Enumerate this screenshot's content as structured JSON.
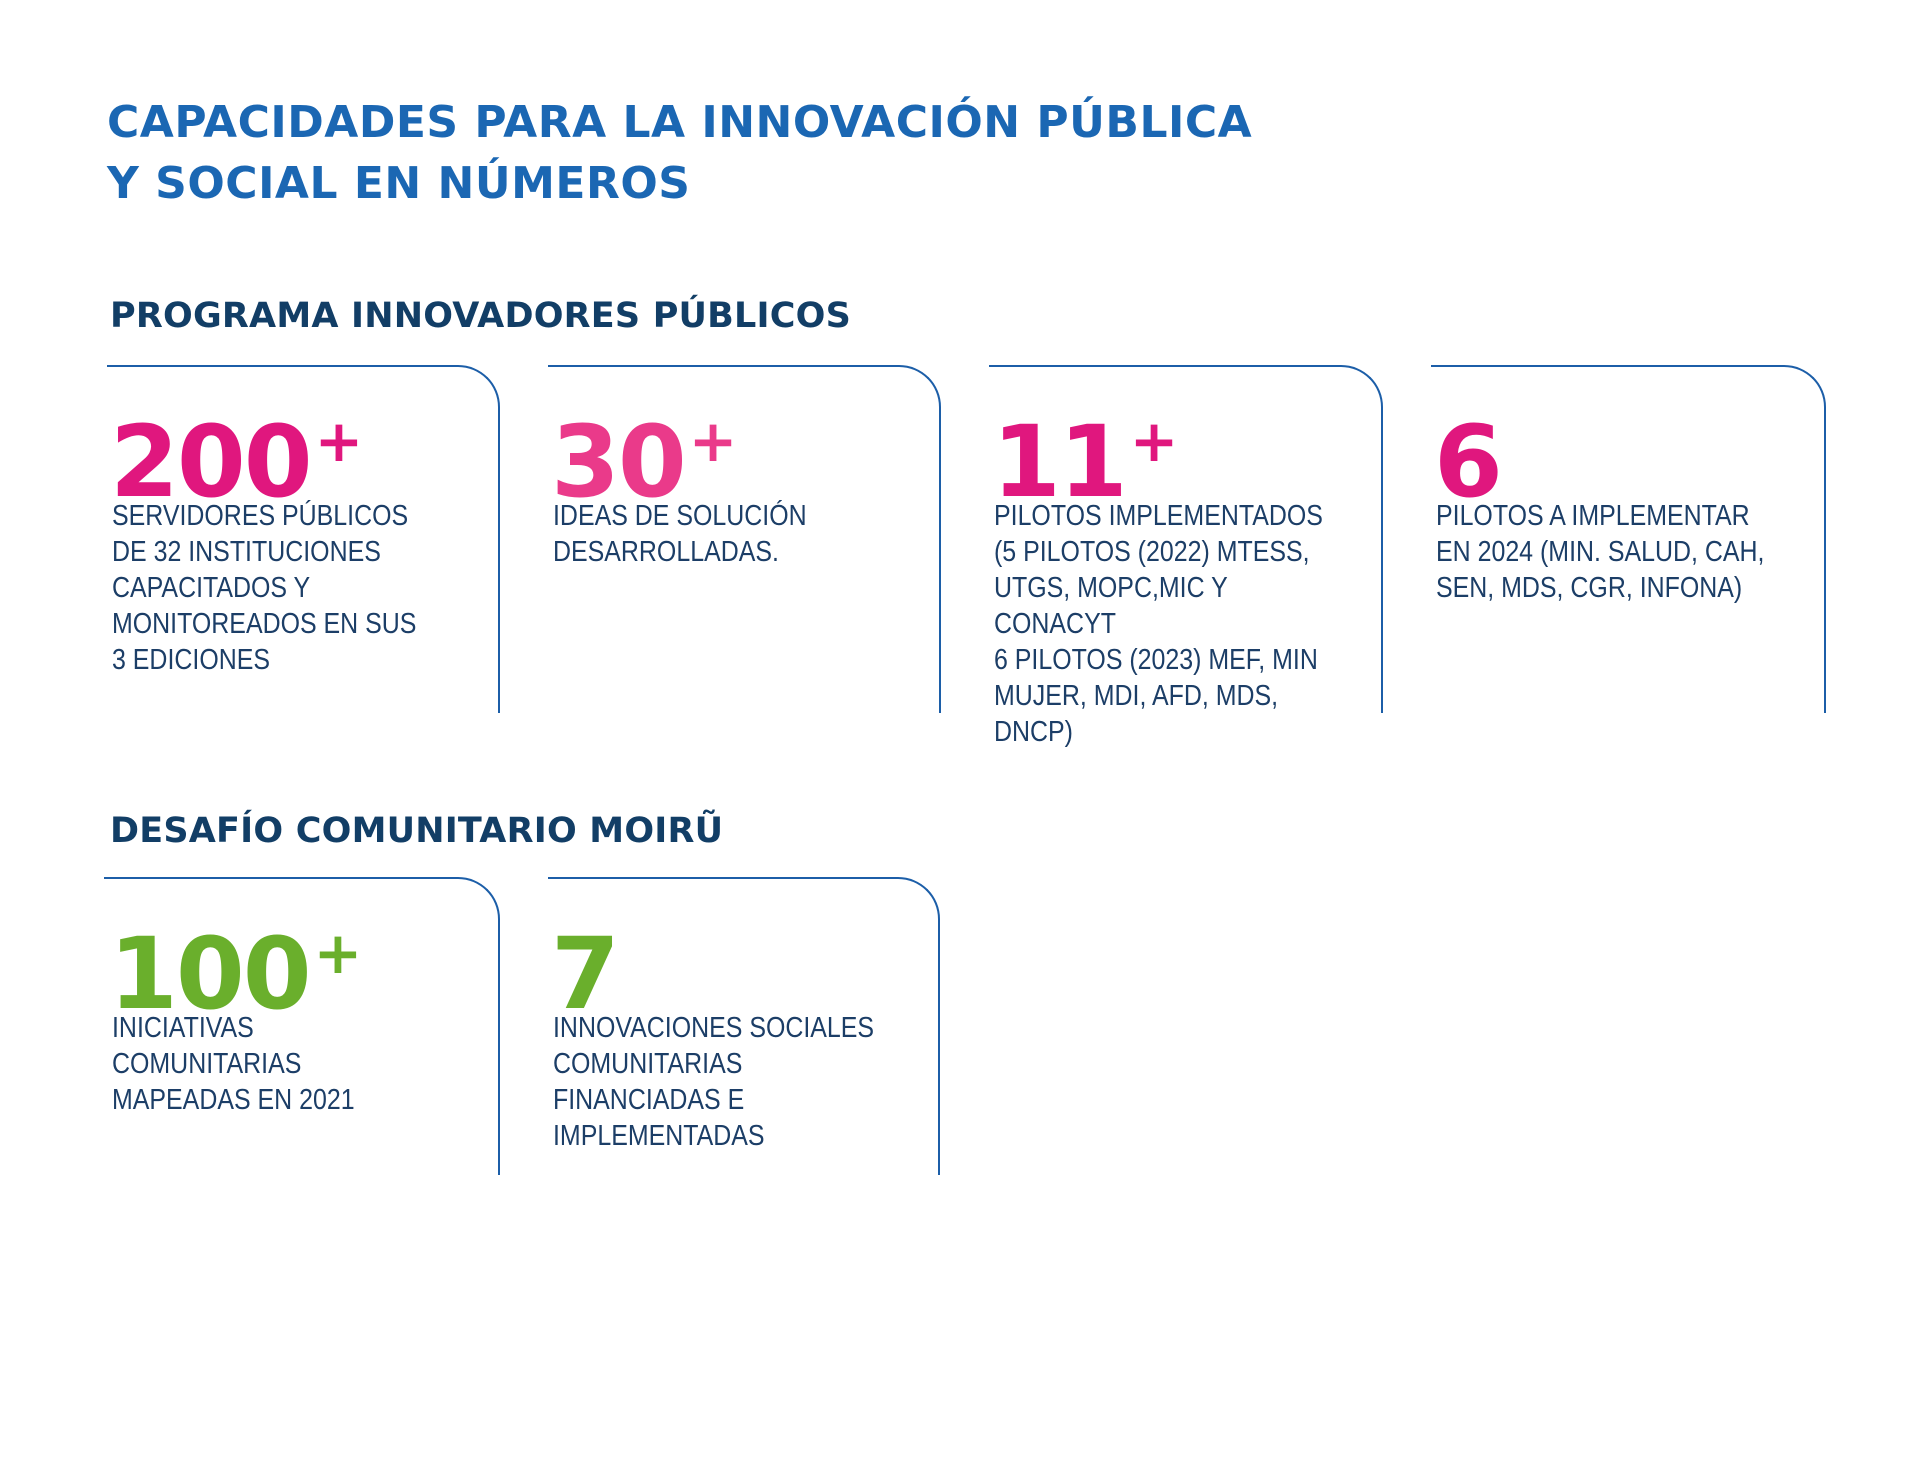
{
  "title": {
    "line1": "CAPACIDADES PARA LA INNOVACIÓN PÚBLICA",
    "line2": "Y SOCIAL EN NÚMEROS"
  },
  "colors": {
    "title": "#1b67b3",
    "heading": "#123e66",
    "border": "#1c5ea8",
    "body_text": "#1c3e67",
    "magenta": "#e0177e",
    "pink": "#ea3a8a",
    "green": "#6aaf2c"
  },
  "sections": [
    {
      "heading": "PROGRAMA INNOVADORES PÚBLICOS",
      "cards": [
        {
          "number": "200",
          "suffix": "+",
          "color": "#e0177e",
          "text": "SERVIDORES PÚBLICOS\nDE 32 INSTITUCIONES\nCAPACITADOS Y\nMONITOREADOS EN SUS\n3 EDICIONES"
        },
        {
          "number": "30",
          "suffix": "+",
          "color": "#ea3a8a",
          "text": "IDEAS DE SOLUCIÓN\nDESARROLLADAS."
        },
        {
          "number": "11",
          "suffix": "+",
          "color": "#e0177e",
          "text": "PILOTOS IMPLEMENTADOS\n(5 PILOTOS (2022) MTESS,\nUTGS, MOPC,MIC Y CONACYT\n6 PILOTOS (2023) MEF, MIN\nMUJER, MDI, AFD, MDS, DNCP)"
        },
        {
          "number": "6",
          "suffix": "",
          "color": "#e0177e",
          "text": "PILOTOS A IMPLEMENTAR\nEN 2024 (MIN. SALUD, CAH,\nSEN, MDS, CGR, INFONA)"
        }
      ]
    },
    {
      "heading": "DESAFÍO COMUNITARIO MOIRŨ",
      "cards": [
        {
          "number": "100",
          "suffix": "+",
          "color": "#6aaf2c",
          "text": "INICIATIVAS COMUNITARIAS\nMAPEADAS EN 2021"
        },
        {
          "number": "7",
          "suffix": "",
          "color": "#6aaf2c",
          "text": "INNOVACIONES SOCIALES\nCOMUNITARIAS\nFINANCIADAS E\nIMPLEMENTADAS"
        }
      ]
    }
  ]
}
